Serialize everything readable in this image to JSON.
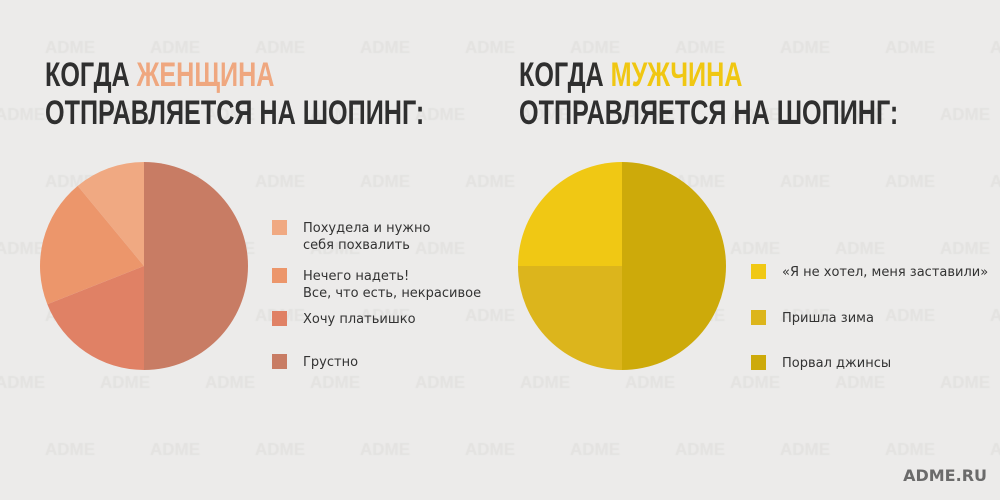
{
  "watermark": "ADME",
  "left": {
    "title_prefix": "КОГДА",
    "title_accent": "ЖЕНЩИНА",
    "title_line2": "ОТПРАВЛЯЕТСЯ НА ШОПИНГ:",
    "accent_color": "#efa77f"
  },
  "right": {
    "title_prefix": "КОГДА",
    "title_accent": "МУЖЧИНА",
    "title_line2": "ОТПРАВЛЯЕТСЯ НА ШОПИНГ:",
    "accent_color": "#f0c712"
  },
  "chart_data": [
    {
      "type": "pie",
      "title": "КОГДА ЖЕНЩИНА ОТПРАВЛЯЕТСЯ НА ШОПИНГ:",
      "legend_position": "right",
      "slices": [
        {
          "label_lines": [
            "Похудела и нужно",
            "себя похвалить"
          ],
          "value": 11,
          "color": "#f0a982"
        },
        {
          "label_lines": [
            "Нечего надеть!",
            "Все, что есть, некрасивое"
          ],
          "value": 20,
          "color": "#ec966b"
        },
        {
          "label_lines": [
            "Хочу платьишко"
          ],
          "value": 19,
          "color": "#e08165"
        },
        {
          "label_lines": [
            "Грустно"
          ],
          "value": 50,
          "color": "#c87c64"
        }
      ]
    },
    {
      "type": "pie",
      "title": "КОГДА МУЖЧИНА ОТПРАВЛЯЕТСЯ НА ШОПИНГ:",
      "legend_position": "right",
      "slices": [
        {
          "label_lines": [
            "«Я не хотел, меня заставили»"
          ],
          "value": 25,
          "color": "#f0c814"
        },
        {
          "label_lines": [
            "Пришла зима"
          ],
          "value": 25,
          "color": "#dcb51c"
        },
        {
          "label_lines": [
            "Порвал джинсы"
          ],
          "value": 50,
          "color": "#cdaa0a"
        }
      ]
    }
  ],
  "footer": "ADME.RU"
}
